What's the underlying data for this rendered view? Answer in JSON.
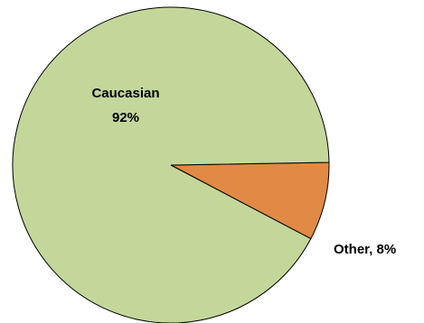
{
  "chart_data": {
    "type": "pie",
    "title": "",
    "slices": [
      {
        "label": "Caucasian",
        "value": 92,
        "display": "92%",
        "color": "#c4d79b"
      },
      {
        "label": "Other",
        "value": 8,
        "display": "Other, 8%",
        "color": "#e08a45"
      }
    ],
    "start_angle_deg": -1,
    "direction": "clockwise",
    "legend": "none"
  }
}
